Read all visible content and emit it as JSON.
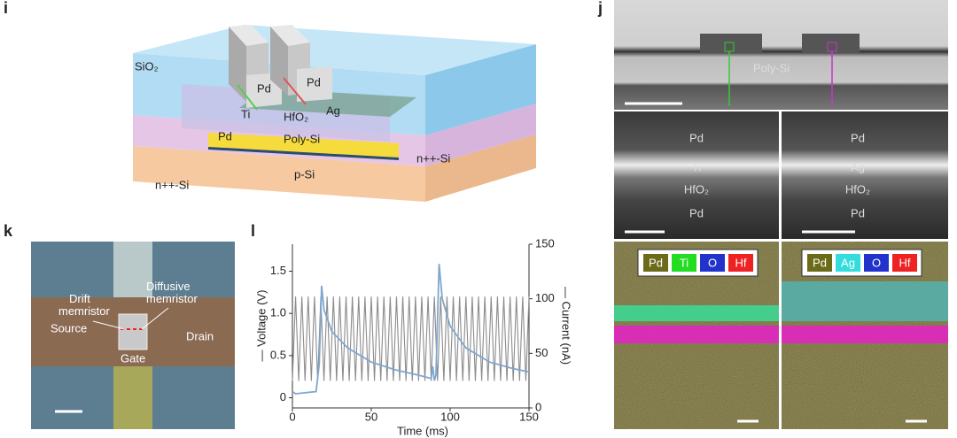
{
  "panel_i": {
    "label": "i",
    "sio2": "SiO₂",
    "pd_left": "Pd",
    "pd_right": "Pd",
    "ti": "Ti",
    "hfo2": "HfO₂",
    "ag": "Ag",
    "pd_bottom": "Pd",
    "poly_si": "Poly-Si",
    "n_si_right": "n++-Si",
    "n_si_left": "n++-Si",
    "p_si": "p-Si"
  },
  "panel_j": {
    "label": "j",
    "poly_si": "Poly-Si",
    "left_layers": [
      "Pd",
      "Ti",
      "HfO₂",
      "Pd"
    ],
    "right_layers": [
      "Pd",
      "Ag",
      "HfO₂",
      "Pd"
    ],
    "left_legend": [
      "Pd",
      "Ti",
      "O",
      "Hf"
    ],
    "right_legend": [
      "Pd",
      "Ag",
      "O",
      "Hf"
    ]
  },
  "panel_k": {
    "label": "k",
    "drift": [
      "Drift",
      "memristor"
    ],
    "diffusive": [
      "Diffusive",
      "memristor"
    ],
    "source": "Source",
    "drain": "Drain",
    "gate": "Gate"
  },
  "chart_data": {
    "type": "line",
    "panel_label": "l",
    "xlabel": "Time (ms)",
    "ylabel": "— Voltage (V)",
    "y2label": "— Current (nA)",
    "xlim": [
      0,
      150
    ],
    "xticks": [
      0,
      50,
      100,
      150
    ],
    "ylim": [
      -0.12,
      1.82
    ],
    "yticks": [
      0,
      0.5,
      {
        "value": 1,
        "label": "1.0"
      },
      1.5
    ],
    "y2lim": [
      0,
      150
    ],
    "y2ticks": [
      0,
      50,
      100,
      150
    ],
    "series": [
      {
        "color": "#8c8c8c",
        "x": [
          0,
          2,
          4,
          6,
          8,
          10,
          12,
          14,
          16,
          18,
          20,
          22,
          24,
          26,
          28,
          30,
          32,
          34,
          36,
          38,
          40,
          42,
          44,
          46,
          48,
          50,
          52,
          54,
          56,
          58,
          60,
          62,
          64,
          66,
          68,
          70,
          72,
          74,
          76,
          78,
          80,
          82,
          84,
          86,
          88,
          90,
          92,
          94,
          96,
          98,
          100,
          102,
          104,
          106,
          108,
          110,
          112,
          114,
          116,
          118,
          120,
          122,
          124,
          126,
          128,
          130,
          132,
          134,
          136,
          138,
          140,
          142,
          144,
          146,
          148,
          150
        ],
        "values": [
          0.2,
          1.2,
          0.2,
          1.2,
          0.2,
          1.2,
          0.2,
          1.2,
          0.2,
          1.2,
          0.2,
          1.2,
          0.2,
          1.2,
          0.2,
          1.2,
          0.2,
          1.2,
          0.2,
          1.2,
          0.2,
          1.2,
          0.2,
          1.2,
          0.2,
          1.2,
          0.2,
          1.2,
          0.2,
          1.2,
          0.2,
          1.2,
          0.2,
          1.2,
          0.2,
          1.2,
          0.2,
          1.2,
          0.2,
          1.2,
          0.2,
          1.2,
          0.2,
          1.2,
          0.2,
          1.2,
          0.2,
          1.2,
          0.2,
          1.2,
          0.2,
          1.2,
          0.2,
          1.2,
          0.2,
          1.2,
          0.2,
          1.2,
          0.2,
          1.2,
          0.2,
          1.2,
          0.2,
          1.2,
          0.2,
          1.2,
          0.2,
          1.2,
          0.2,
          1.2,
          0.2,
          1.2,
          0.2,
          1.2,
          0.2,
          1.2
        ]
      },
      {
        "color": "#7fa7d0",
        "axis": "y2",
        "x": [
          0,
          2,
          15,
          17,
          18.5,
          20,
          25,
          35,
          50,
          65,
          80,
          88,
          89,
          90,
          91,
          93,
          95,
          100,
          110,
          125,
          140,
          150
        ],
        "values": [
          15,
          13,
          15,
          40,
          112,
          90,
          70,
          55,
          42,
          35,
          30,
          27,
          38,
          25,
          30,
          132,
          100,
          75,
          55,
          42,
          36,
          33
        ]
      }
    ]
  }
}
